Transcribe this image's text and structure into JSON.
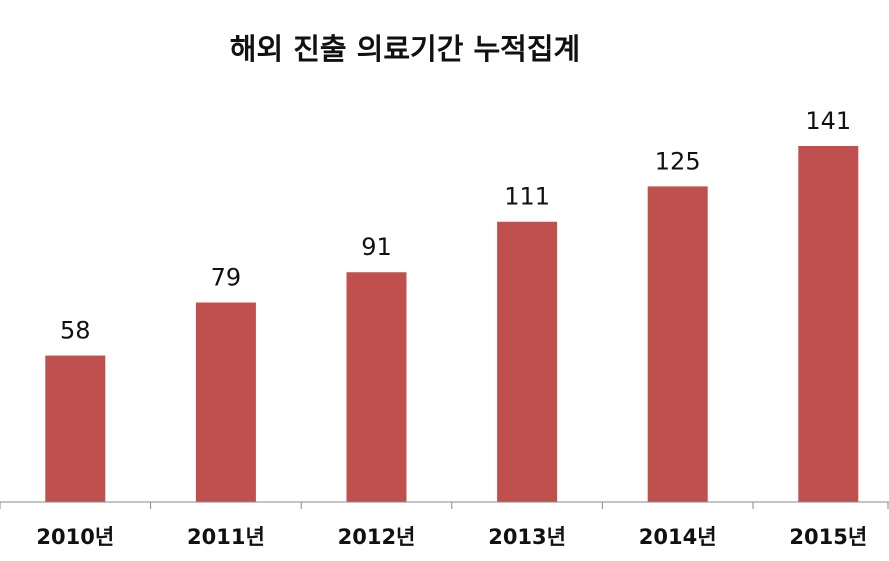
{
  "chart_data": {
    "type": "bar",
    "title": "해외 진출 의료기간 누적집계",
    "categories": [
      "2010년",
      "2011년",
      "2012년",
      "2013년",
      "2014년",
      "2015년"
    ],
    "values": [
      58,
      79,
      91,
      111,
      125,
      141
    ],
    "ylim": [
      0,
      141
    ],
    "grid": false,
    "legend": "none",
    "data_labels": true,
    "colors": {
      "bar": "#c0504d",
      "axis": "#8a8a8a",
      "text": "#111111"
    }
  }
}
